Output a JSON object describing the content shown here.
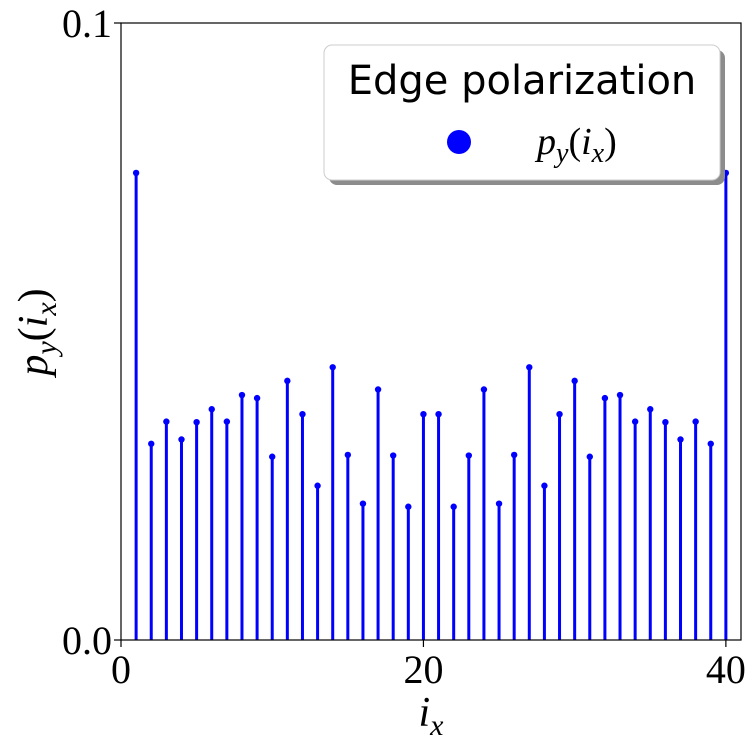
{
  "chart_data": {
    "type": "stem",
    "xlabel": "i_x",
    "ylabel": "p_y(i_x)",
    "xlim": [
      0,
      41
    ],
    "ylim": [
      0.0,
      0.1
    ],
    "xticks": [
      0,
      20,
      40
    ],
    "xtick_labels": [
      "0",
      "20",
      "40"
    ],
    "yticks": [
      0.0,
      0.1
    ],
    "ytick_labels": [
      "0.0",
      "0.1"
    ],
    "grid": false,
    "legend": {
      "title": "Edge polarization",
      "placement": "top-right",
      "entries": [
        "p_y(i_x)"
      ]
    },
    "series": [
      {
        "marker_color": "#0000ff",
        "x": [
          1,
          2,
          3,
          4,
          5,
          6,
          7,
          8,
          9,
          10,
          11,
          12,
          13,
          14,
          15,
          16,
          17,
          18,
          19,
          20,
          21,
          22,
          23,
          24,
          25,
          26,
          27,
          28,
          29,
          30,
          31,
          32,
          33,
          34,
          35,
          36,
          37,
          38,
          39,
          40
        ],
        "values": [
          0.0757,
          0.0318,
          0.0354,
          0.0325,
          0.0353,
          0.0374,
          0.0354,
          0.0397,
          0.0392,
          0.0297,
          0.042,
          0.0366,
          0.025,
          0.0442,
          0.03,
          0.0221,
          0.0406,
          0.0299,
          0.0216,
          0.0366,
          0.0366,
          0.0216,
          0.0299,
          0.0406,
          0.0221,
          0.03,
          0.0442,
          0.025,
          0.0366,
          0.042,
          0.0297,
          0.0392,
          0.0397,
          0.0354,
          0.0374,
          0.0353,
          0.0325,
          0.0354,
          0.0318,
          0.0757
        ]
      }
    ]
  }
}
